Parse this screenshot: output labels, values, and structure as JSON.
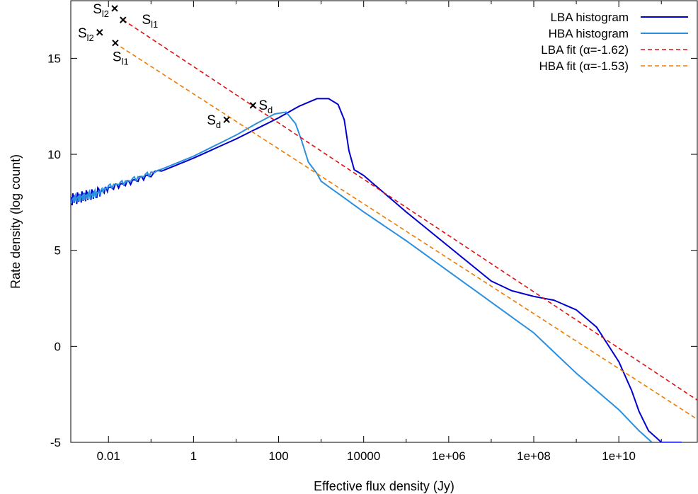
{
  "chart_data": {
    "type": "line",
    "title": "",
    "xlabel": "Effective flux density (Jy)",
    "ylabel": "Rate density (log count)",
    "x_scale": "log",
    "xlim": [
      0.0013,
      700000000000
    ],
    "ylim": [
      -5,
      18
    ],
    "x_ticks": [
      {
        "value": 0.01,
        "label": "0.01"
      },
      {
        "value": 1,
        "label": "1"
      },
      {
        "value": 100,
        "label": "100"
      },
      {
        "value": 10000,
        "label": "10000"
      },
      {
        "value": 1000000,
        "label": "1e+06"
      },
      {
        "value": 100000000,
        "label": "1e+08"
      },
      {
        "value": 10000000000,
        "label": "1e+10"
      }
    ],
    "y_ticks": [
      {
        "value": -5,
        "label": "-5"
      },
      {
        "value": 0,
        "label": "0"
      },
      {
        "value": 5,
        "label": "5"
      },
      {
        "value": 10,
        "label": "10"
      },
      {
        "value": 15,
        "label": "15"
      }
    ],
    "grid": false,
    "legend_position": "top-right",
    "series": [
      {
        "name": "LBA histogram",
        "color": "#0000cc",
        "style": "solid",
        "x": [
          0.0013,
          0.002,
          0.003,
          0.005,
          0.01,
          0.03,
          0.1,
          1,
          10,
          100,
          300,
          800,
          1500,
          2500,
          3500,
          4500,
          6000,
          10000,
          100000,
          1000000,
          10000000,
          30000000,
          100000000,
          300000000,
          1000000000,
          3000000000,
          10000000000,
          20000000000,
          30000000000,
          50000000000,
          80000000000,
          100000000000,
          300000000000
        ],
        "y": [
          7.6,
          7.7,
          7.8,
          7.9,
          8.2,
          8.5,
          8.9,
          9.8,
          10.8,
          11.9,
          12.5,
          12.9,
          12.9,
          12.6,
          11.8,
          10.2,
          9.2,
          8.9,
          7.0,
          5.2,
          3.4,
          2.9,
          2.6,
          2.4,
          1.9,
          1.0,
          -0.8,
          -2.3,
          -3.4,
          -4.4,
          -4.8,
          -5.0,
          -5.0
        ]
      },
      {
        "name": "HBA histogram",
        "color": "#2a8fdf",
        "style": "solid",
        "x": [
          0.0013,
          0.002,
          0.003,
          0.005,
          0.01,
          0.03,
          0.1,
          1,
          10,
          30,
          80,
          150,
          250,
          350,
          500,
          800,
          1000,
          10000,
          100000,
          1000000,
          10000000,
          100000000,
          1000000000,
          10000000000,
          30000000000,
          60000000000
        ],
        "y": [
          7.6,
          7.7,
          7.8,
          7.9,
          8.3,
          8.6,
          9.0,
          9.9,
          11.0,
          11.6,
          12.1,
          12.2,
          11.6,
          10.7,
          9.6,
          9.0,
          8.6,
          7.0,
          5.5,
          3.9,
          2.3,
          0.7,
          -1.4,
          -3.3,
          -4.4,
          -5.0
        ]
      },
      {
        "name": "LBA fit (α=-1.62)",
        "color": "#dd1111",
        "style": "dashed",
        "x": [
          0.022,
          700000000000
        ],
        "y": [
          17.0,
          -2.8
        ]
      },
      {
        "name": "HBA fit (α=-1.53)",
        "color": "#f07a00",
        "style": "dashed",
        "x": [
          0.014,
          700000000000
        ],
        "y": [
          15.8,
          -3.8
        ]
      }
    ],
    "annotations": [
      {
        "x": 0.014,
        "y": 17.6,
        "text": "S",
        "sub": "l2",
        "anchor": "left"
      },
      {
        "x": 0.0062,
        "y": 16.35,
        "text": "S",
        "sub": "l2",
        "anchor": "left"
      },
      {
        "x": 0.045,
        "y": 17.0,
        "text": "S",
        "sub": "l1",
        "anchor": "right"
      },
      {
        "x": 0.0145,
        "y": 15.8,
        "text": "S",
        "sub": "l1",
        "anchor": "below"
      },
      {
        "x": 25,
        "y": 12.55,
        "text": "S",
        "sub": "d",
        "anchor": "right"
      },
      {
        "x": 6,
        "y": 11.8,
        "text": "S",
        "sub": "d",
        "anchor": "left"
      }
    ],
    "markers": [
      {
        "x": 0.022,
        "y": 17.0
      },
      {
        "x": 0.014,
        "y": 17.6
      },
      {
        "x": 0.0062,
        "y": 16.35
      },
      {
        "x": 0.0145,
        "y": 15.8
      },
      {
        "x": 25,
        "y": 12.55
      },
      {
        "x": 6,
        "y": 11.8
      }
    ]
  }
}
